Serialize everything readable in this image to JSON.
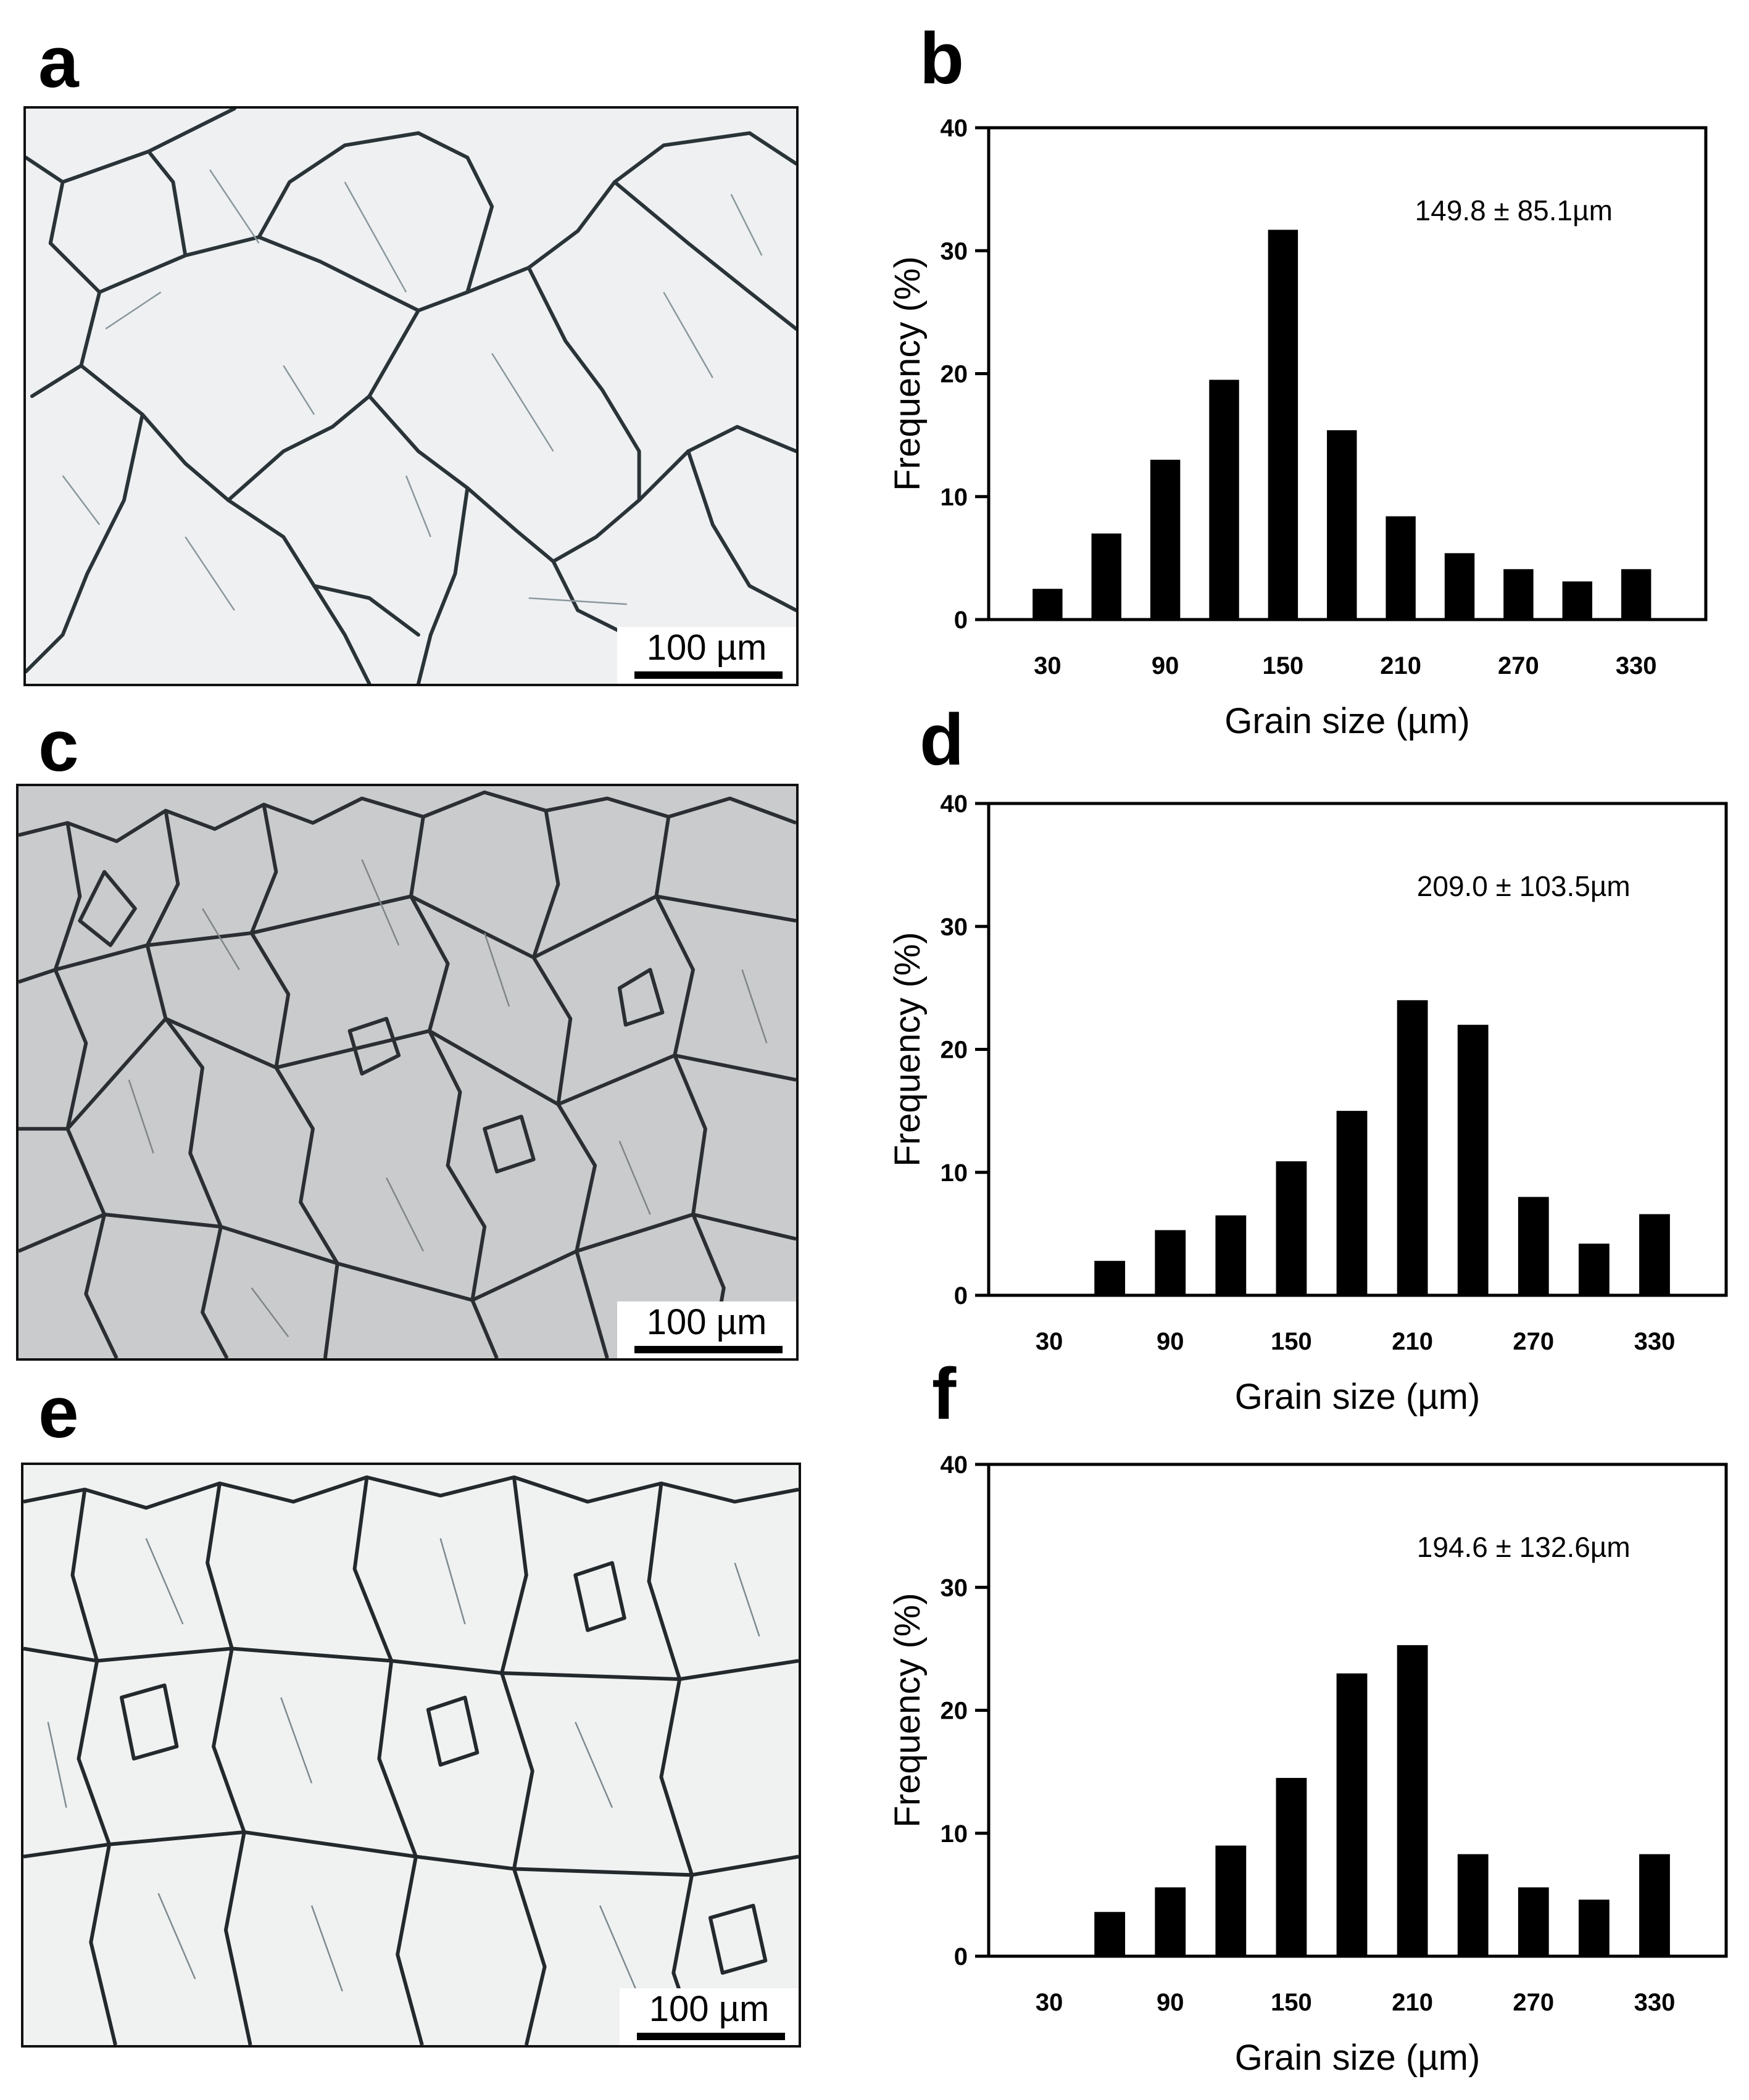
{
  "panels": {
    "a": "a",
    "b": "b",
    "c": "c",
    "d": "d",
    "e": "e",
    "f": "f"
  },
  "micrographs": [
    {
      "id": "a",
      "scale_label": "100 µm",
      "tint": "#eef0f2"
    },
    {
      "id": "c",
      "scale_label": "100 µm",
      "tint": "#c9cbcc"
    },
    {
      "id": "e",
      "scale_label": "100 µm",
      "tint": "#f0f1f1"
    }
  ],
  "colors": {
    "bar": "#000000",
    "axis": "#000000",
    "background": "#ffffff"
  },
  "chart_data": [
    {
      "id": "b",
      "type": "bar",
      "x": [
        30,
        60,
        90,
        120,
        150,
        180,
        210,
        240,
        270,
        300,
        330
      ],
      "values": [
        2.5,
        7,
        13,
        19.5,
        31.7,
        15.4,
        8.4,
        5.4,
        4.1,
        3.1,
        4.1
      ],
      "x_tick_labels": [
        "30",
        "90",
        "150",
        "210",
        "270",
        "330"
      ],
      "y_ticks": [
        0,
        10,
        20,
        30,
        40
      ],
      "ylim": [
        0,
        40
      ],
      "xlabel": "Grain size (µm)",
      "ylabel": "Frequency (%)",
      "annotation": "149.8 ± 85.1µm"
    },
    {
      "id": "d",
      "type": "bar",
      "x": [
        30,
        60,
        90,
        120,
        150,
        180,
        210,
        240,
        270,
        300,
        330
      ],
      "values": [
        0,
        2.8,
        5.3,
        6.5,
        10.9,
        15,
        24,
        22,
        8,
        4.2,
        6.6
      ],
      "x_tick_labels": [
        "30",
        "90",
        "150",
        "210",
        "270",
        "330"
      ],
      "y_ticks": [
        0,
        10,
        20,
        30,
        40
      ],
      "ylim": [
        0,
        40
      ],
      "xlabel": "Grain size (µm)",
      "ylabel": "Frequency (%)",
      "annotation": "209.0 ± 103.5µm"
    },
    {
      "id": "f",
      "type": "bar",
      "x": [
        30,
        60,
        90,
        120,
        150,
        180,
        210,
        240,
        270,
        300,
        330
      ],
      "values": [
        0,
        3.6,
        5.6,
        9,
        14.5,
        23,
        25.3,
        8.3,
        5.6,
        4.6,
        8.3
      ],
      "x_tick_labels": [
        "30",
        "90",
        "150",
        "210",
        "270",
        "330"
      ],
      "y_ticks": [
        0,
        10,
        20,
        30,
        40
      ],
      "ylim": [
        0,
        40
      ],
      "xlabel": "Grain size (µm)",
      "ylabel": "Frequency (%)",
      "annotation": "194.6 ± 132.6µm"
    }
  ]
}
